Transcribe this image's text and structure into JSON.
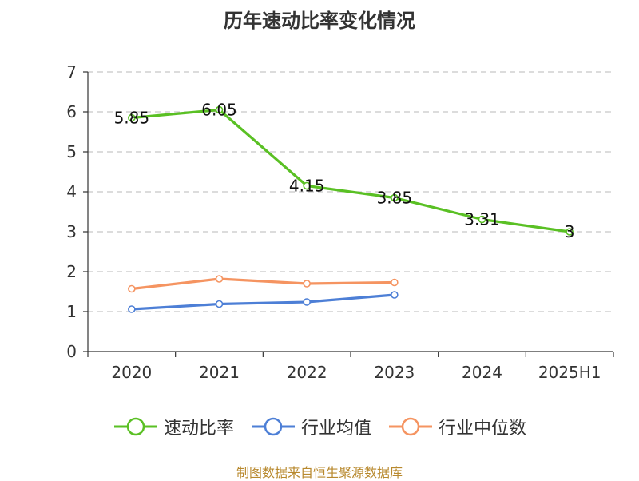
{
  "chart_data": {
    "type": "line",
    "title": "历年速动比率变化情况",
    "categories": [
      "2020",
      "2021",
      "2022",
      "2023",
      "2024",
      "2025H1"
    ],
    "ylim": [
      0,
      7
    ],
    "yticks": [
      0,
      1,
      2,
      3,
      4,
      5,
      6,
      7
    ],
    "grid": true,
    "legend_position": "bottom",
    "series": [
      {
        "name": "速动比率",
        "color": "#5ac024",
        "values": [
          5.85,
          6.05,
          4.15,
          3.85,
          3.31,
          3
        ],
        "labels": [
          "5.85",
          "6.05",
          "4.15",
          "3.85",
          "3.31",
          "3"
        ],
        "show_labels": true
      },
      {
        "name": "行业均值",
        "color": "#4d7fd6",
        "values": [
          1.06,
          1.19,
          1.24,
          1.42,
          null,
          null
        ],
        "show_labels": false
      },
      {
        "name": "行业中位数",
        "color": "#f59461",
        "values": [
          1.57,
          1.82,
          1.7,
          1.73,
          null,
          null
        ],
        "show_labels": false
      }
    ]
  },
  "footer": {
    "source": "制图数据来自恒生聚源数据库"
  }
}
